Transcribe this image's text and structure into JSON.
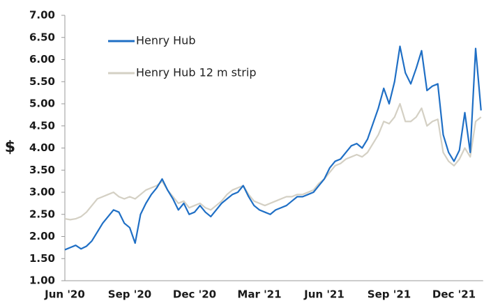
{
  "chart_data": {
    "type": "line",
    "ylabel": "$",
    "categories": [
      "Jun '20",
      null,
      null,
      null,
      null,
      null,
      null,
      null,
      null,
      null,
      null,
      null,
      "Sep '20",
      null,
      null,
      null,
      null,
      null,
      null,
      null,
      null,
      null,
      null,
      null,
      "Dec '20",
      null,
      null,
      null,
      null,
      null,
      null,
      null,
      null,
      null,
      null,
      null,
      "Mar '21",
      null,
      null,
      null,
      null,
      null,
      null,
      null,
      null,
      null,
      null,
      null,
      "Jun '21",
      null,
      null,
      null,
      null,
      null,
      null,
      null,
      null,
      null,
      null,
      null,
      "Sep '21",
      null,
      null,
      null,
      null,
      null,
      null,
      null,
      null,
      null,
      null,
      null,
      "Dec '21",
      null,
      null,
      null,
      null,
      null
    ],
    "series": [
      {
        "name": "Henry Hub",
        "color": "#1f6fc5",
        "values": [
          1.7,
          1.75,
          1.8,
          1.72,
          1.78,
          1.9,
          2.1,
          2.3,
          2.45,
          2.6,
          2.55,
          2.3,
          2.2,
          1.85,
          2.5,
          2.75,
          2.95,
          3.1,
          3.3,
          3.05,
          2.85,
          2.6,
          2.75,
          2.5,
          2.55,
          2.7,
          2.55,
          2.45,
          2.6,
          2.75,
          2.85,
          2.95,
          3.0,
          3.15,
          2.9,
          2.7,
          2.6,
          2.55,
          2.5,
          2.6,
          2.65,
          2.7,
          2.8,
          2.9,
          2.9,
          2.95,
          3.0,
          3.15,
          3.3,
          3.55,
          3.7,
          3.75,
          3.9,
          4.05,
          4.1,
          4.0,
          4.2,
          4.55,
          4.9,
          5.35,
          5.0,
          5.5,
          6.3,
          5.7,
          5.45,
          5.8,
          6.2,
          5.3,
          5.4,
          5.45,
          4.3,
          3.9,
          3.7,
          3.95,
          4.8,
          3.9,
          6.25,
          4.85
        ]
      },
      {
        "name": "Henry Hub 12 m strip",
        "color": "#d4d0c4",
        "values": [
          2.4,
          2.38,
          2.4,
          2.45,
          2.55,
          2.7,
          2.85,
          2.9,
          2.95,
          3.0,
          2.9,
          2.85,
          2.9,
          2.85,
          2.95,
          3.05,
          3.1,
          3.15,
          3.25,
          3.05,
          2.9,
          2.75,
          2.8,
          2.65,
          2.7,
          2.75,
          2.65,
          2.6,
          2.7,
          2.8,
          2.95,
          3.05,
          3.1,
          3.15,
          2.95,
          2.8,
          2.75,
          2.7,
          2.75,
          2.8,
          2.85,
          2.9,
          2.9,
          2.95,
          2.95,
          3.0,
          3.05,
          3.2,
          3.3,
          3.45,
          3.6,
          3.65,
          3.75,
          3.8,
          3.85,
          3.8,
          3.9,
          4.1,
          4.3,
          4.6,
          4.55,
          4.7,
          5.0,
          4.6,
          4.6,
          4.7,
          4.9,
          4.5,
          4.6,
          4.65,
          3.9,
          3.7,
          3.6,
          3.75,
          4.0,
          3.8,
          4.6,
          4.7
        ]
      }
    ],
    "ylim": [
      1,
      7
    ],
    "yticks": [
      {
        "value": 1,
        "label": "1.00"
      },
      {
        "value": 1.5,
        "label": "1.50"
      },
      {
        "value": 2,
        "label": "2.00"
      },
      {
        "value": 2.5,
        "label": "2.50"
      },
      {
        "value": 3,
        "label": "3.00"
      },
      {
        "value": 3.5,
        "label": "3.50"
      },
      {
        "value": 4,
        "label": "4.00"
      },
      {
        "value": 4.5,
        "label": "4.50"
      },
      {
        "value": 5,
        "label": "5.00"
      },
      {
        "value": 5.5,
        "label": "5.50"
      },
      {
        "value": 6,
        "label": "6.00"
      },
      {
        "value": 6.5,
        "label": "6.50"
      },
      {
        "value": 7,
        "label": "7.00"
      }
    ],
    "legend": "upper left"
  }
}
